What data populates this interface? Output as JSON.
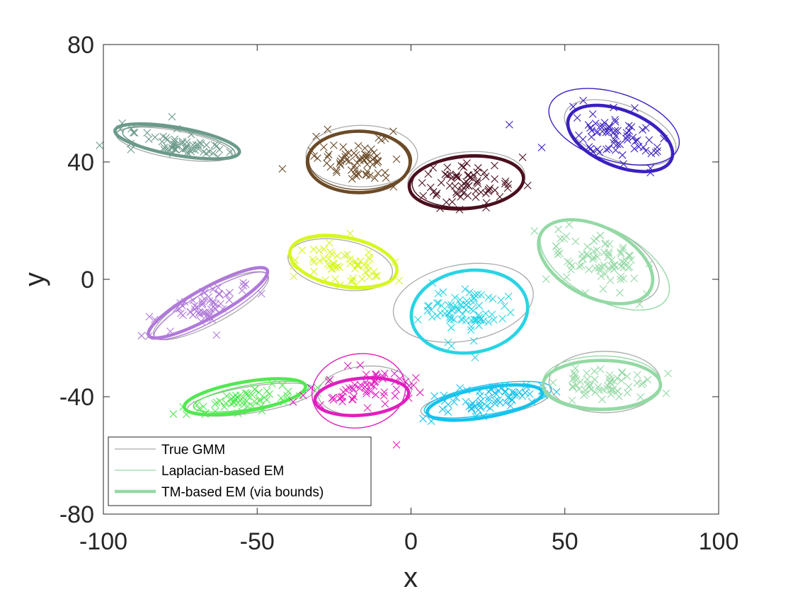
{
  "chart_data": {
    "type": "scatter",
    "title": "",
    "xlabel": "x",
    "ylabel": "y",
    "xlim": [
      -100,
      100
    ],
    "ylim": [
      -80,
      80
    ],
    "xticks": [
      "-100",
      "-50",
      "0",
      "50",
      "100"
    ],
    "yticks": [
      "-80",
      "-40",
      "0",
      "40",
      "80"
    ],
    "grid": false,
    "legend_position": "bottom-left",
    "legend": [
      {
        "label": "True GMM",
        "color": "#aaaaaa",
        "style": "thin"
      },
      {
        "label": "Laplacian-based EM",
        "color": "#93d9a4",
        "style": "thin"
      },
      {
        "label": "TM-based EM (via bounds)",
        "color": "#93d9a4",
        "style": "thick"
      }
    ],
    "series": [
      {
        "color": "#6b9a8b",
        "center": [
          -76,
          46
        ],
        "spread": [
          2.3,
          8.5
        ],
        "angle": 80,
        "count": 60,
        "true": {
          "c": [
            -77,
            46
          ],
          "r": [
            4.5,
            20
          ],
          "a": 80
        },
        "lap": {
          "c": [
            -75.5,
            46.5
          ],
          "r": [
            4.2,
            19.5
          ],
          "a": 79
        },
        "tm": {
          "c": [
            -76,
            47
          ],
          "r": [
            4.5,
            21.5
          ],
          "a": 80
        }
      },
      {
        "color": "#6b4a27",
        "center": [
          -17,
          40
        ],
        "spread": [
          4.5,
          7.5
        ],
        "angle": 90,
        "count": 70,
        "true": {
          "c": [
            -16,
            42
          ],
          "r": [
            10,
            19
          ],
          "a": 90
        },
        "lap": {
          "c": [
            -16.5,
            40.5
          ],
          "r": [
            9.5,
            17.5
          ],
          "a": 90
        },
        "tm": {
          "c": [
            -17,
            40
          ],
          "r": [
            10,
            17.5
          ],
          "a": 90
        }
      },
      {
        "color": "#4a0f1f",
        "center": [
          18,
          33
        ],
        "spread": [
          4,
          8
        ],
        "angle": 95,
        "count": 70,
        "true": {
          "c": [
            18,
            34
          ],
          "r": [
            9,
            20
          ],
          "a": 95
        },
        "lap": {
          "c": [
            18.5,
            33.5
          ],
          "r": [
            8.5,
            19
          ],
          "a": 94
        },
        "tm": {
          "c": [
            18,
            33
          ],
          "r": [
            8.5,
            19.5
          ],
          "a": 95
        }
      },
      {
        "color": "#3a20c0",
        "center": [
          67,
          49
        ],
        "spread": [
          8,
          3.5
        ],
        "angle": -20,
        "count": 70,
        "true": {
          "c": [
            68,
            50
          ],
          "r": [
            19,
            9.5
          ],
          "a": -20
        },
        "lap": {
          "c": [
            66,
            52
          ],
          "r": [
            22,
            11.5
          ],
          "a": -18
        },
        "tm": {
          "c": [
            68,
            48
          ],
          "r": [
            18,
            9.5
          ],
          "a": -22
        }
      },
      {
        "color": "#d7f71e",
        "center": [
          -23,
          5
        ],
        "spread": [
          3.5,
          7.5
        ],
        "angle": 80,
        "count": 60,
        "true": {
          "c": [
            -23,
            5
          ],
          "r": [
            8,
            18
          ],
          "a": 80
        },
        "lap": {
          "c": [
            -22,
            6
          ],
          "r": [
            7.5,
            18.5
          ],
          "a": 80
        },
        "tm": {
          "c": [
            -22,
            6
          ],
          "r": [
            8,
            18.5
          ],
          "a": 79
        }
      },
      {
        "color": "#b079d9",
        "center": [
          -66,
          -9
        ],
        "spread": [
          10,
          2.5
        ],
        "angle": 28,
        "count": 60,
        "true": {
          "c": [
            -65,
            -9
          ],
          "r": [
            21,
            6
          ],
          "a": 28
        },
        "lap": {
          "c": [
            -65,
            -9
          ],
          "r": [
            21,
            5
          ],
          "a": 29
        },
        "tm": {
          "c": [
            -66,
            -8
          ],
          "r": [
            22,
            5
          ],
          "a": 29
        }
      },
      {
        "color": "#28d4e4",
        "center": [
          18,
          -11
        ],
        "spread": [
          7,
          5
        ],
        "angle": 10,
        "count": 80,
        "true": {
          "c": [
            17,
            -8
          ],
          "r": [
            23,
            13
          ],
          "a": 10
        },
        "lap": {
          "c": [
            19,
            -11
          ],
          "r": [
            19,
            14
          ],
          "a": 12
        },
        "tm": {
          "c": [
            19,
            -11
          ],
          "r": [
            19,
            14
          ],
          "a": 8
        }
      },
      {
        "color": "#94d9a5",
        "center": [
          60,
          7
        ],
        "spread": [
          9,
          5
        ],
        "angle": -25,
        "count": 80,
        "true": {
          "c": [
            61,
            6
          ],
          "r": [
            21,
            12
          ],
          "a": -25
        },
        "lap": {
          "c": [
            63,
            5
          ],
          "r": [
            23,
            12
          ],
          "a": -28
        },
        "tm": {
          "c": [
            60,
            6
          ],
          "r": [
            20,
            12
          ],
          "a": -27
        }
      },
      {
        "color": "#52e852",
        "center": [
          -53,
          -41
        ],
        "spread": [
          10,
          2
        ],
        "angle": 10,
        "count": 60,
        "true": {
          "c": [
            -52,
            -41
          ],
          "r": [
            21,
            4.5
          ],
          "a": 9
        },
        "lap": {
          "c": [
            -52,
            -40
          ],
          "r": [
            19,
            4
          ],
          "a": 10
        },
        "tm": {
          "c": [
            -54,
            -40
          ],
          "r": [
            20,
            5
          ],
          "a": 10
        }
      },
      {
        "color": "#e01ebf",
        "center": [
          -16,
          -37
        ],
        "spread": [
          3,
          8
        ],
        "angle": 95,
        "count": 60,
        "true": {
          "c": [
            -15,
            -38
          ],
          "r": [
            8,
            16
          ],
          "a": 95
        },
        "lap": {
          "c": [
            -17,
            -38
          ],
          "r": [
            12,
            16
          ],
          "a": 100
        },
        "tm": {
          "c": [
            -16,
            -40
          ],
          "r": [
            6,
            16
          ],
          "a": 95
        }
      },
      {
        "color": "#14c3ec",
        "center": [
          25,
          -41
        ],
        "spread": [
          9,
          2.5
        ],
        "angle": 10,
        "count": 70,
        "true": {
          "c": [
            24,
            -42
          ],
          "r": [
            21,
            5
          ],
          "a": 8
        },
        "lap": {
          "c": [
            25,
            -41
          ],
          "r": [
            21,
            5
          ],
          "a": 10
        },
        "tm": {
          "c": [
            24,
            -42
          ],
          "r": [
            19,
            5
          ],
          "a": 10
        }
      },
      {
        "color": "#94d9a5",
        "center": [
          62,
          -36
        ],
        "spread": [
          2.5,
          8
        ],
        "angle": 90,
        "count": 60,
        "true": {
          "c": [
            63,
            -35
          ],
          "r": [
            10,
            19
          ],
          "a": 90
        },
        "lap": {
          "c": [
            62,
            -35
          ],
          "r": [
            8.5,
            20
          ],
          "a": 90
        },
        "tm": {
          "c": [
            62,
            -36
          ],
          "r": [
            8,
            20
          ],
          "a": 90
        }
      }
    ]
  }
}
